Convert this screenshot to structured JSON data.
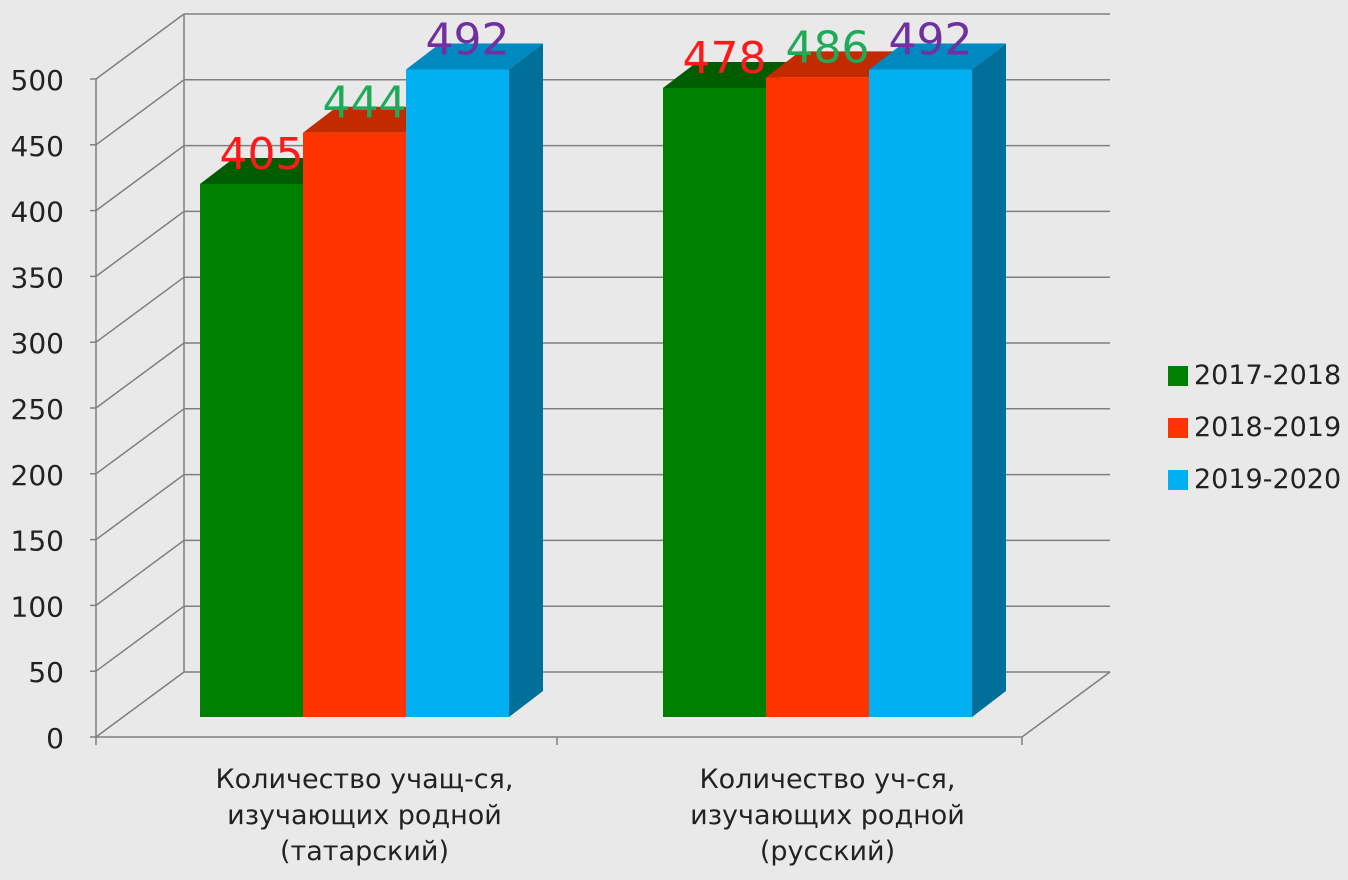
{
  "chart_data": {
    "type": "bar",
    "categories": [
      [
        "Количество учащ-ся,",
        "изучающих родной",
        "(татарский)"
      ],
      [
        "Количество уч-ся,",
        "изучающих родной",
        "(русский)"
      ]
    ],
    "series": [
      {
        "name": "2017-2018",
        "values": [
          405,
          478
        ]
      },
      {
        "name": "2018-2019",
        "values": [
          444,
          486
        ]
      },
      {
        "name": "2019-2020",
        "values": [
          492,
          492
        ]
      }
    ],
    "data_labels": [
      [
        "405",
        "444",
        "492"
      ],
      [
        "478",
        "486",
        "492"
      ]
    ],
    "data_label_colors": [
      [
        "#ff1a1a",
        "#1faa59",
        "#7030a0"
      ],
      [
        "#ff1a1a",
        "#1faa59",
        "#7030a0"
      ]
    ],
    "series_colors": {
      "front": [
        "#008000",
        "#ff3300",
        "#00b0f0"
      ],
      "top": [
        "#005c00",
        "#c42a00",
        "#0088c0"
      ],
      "side": [
        "#005200",
        "#b02600",
        "#006f99"
      ]
    },
    "yticks": [
      0,
      50,
      100,
      150,
      200,
      250,
      300,
      350,
      400,
      450,
      500
    ],
    "ylim": [
      0,
      500
    ],
    "legend_position": "right",
    "grid": true,
    "title": "",
    "xlabel": "",
    "ylabel": "",
    "colors": {
      "background": "#e9e9e9",
      "grid": "#7f7f7f",
      "text": "#222222"
    }
  }
}
